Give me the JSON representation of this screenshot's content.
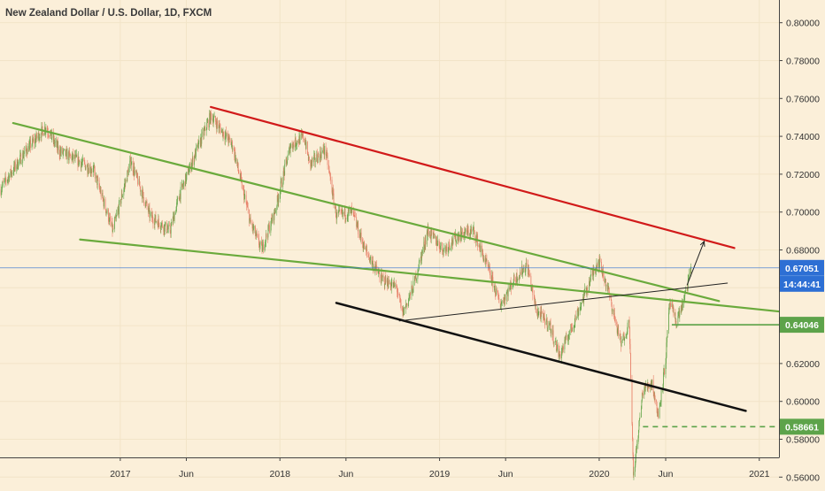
{
  "chart_data": {
    "type": "candlestick",
    "title": "New Zealand Dollar / U.S. Dollar, 1D, FXCM",
    "ylim": [
      0.555,
      0.812
    ],
    "y_ticks": [
      "0.80000",
      "0.78000",
      "0.76000",
      "0.74000",
      "0.72000",
      "0.70000",
      "0.68000",
      "0.66000",
      "0.64000",
      "0.62000",
      "0.60000",
      "0.58000",
      "0.56000"
    ],
    "y_tick_values": [
      0.8,
      0.78,
      0.76,
      0.74,
      0.72,
      0.7,
      0.68,
      0.66,
      0.64,
      0.62,
      0.6,
      0.58,
      0.56
    ],
    "x_range": [
      "2016-04-01",
      "2021-02-15"
    ],
    "x_ticks": [
      {
        "label": "2017",
        "date": "2017-01-01"
      },
      {
        "label": "Jun",
        "date": "2017-06-01"
      },
      {
        "label": "2018",
        "date": "2018-01-01"
      },
      {
        "label": "Jun",
        "date": "2018-06-01"
      },
      {
        "label": "2019",
        "date": "2019-01-01"
      },
      {
        "label": "Jun",
        "date": "2019-06-01"
      },
      {
        "label": "2020",
        "date": "2020-01-01"
      },
      {
        "label": "Jun",
        "date": "2020-06-01"
      },
      {
        "label": "2021",
        "date": "2021-01-01"
      }
    ],
    "price_path": [
      [
        "2016-04-01",
        0.712
      ],
      [
        "2016-06-01",
        0.733
      ],
      [
        "2016-07-15",
        0.745
      ],
      [
        "2016-08-15",
        0.732
      ],
      [
        "2016-09-20",
        0.728
      ],
      [
        "2016-11-01",
        0.722
      ],
      [
        "2016-12-15",
        0.69
      ],
      [
        "2017-01-25",
        0.727
      ],
      [
        "2017-03-10",
        0.698
      ],
      [
        "2017-04-25",
        0.69
      ],
      [
        "2017-05-15",
        0.708
      ],
      [
        "2017-06-20",
        0.73
      ],
      [
        "2017-07-27",
        0.751
      ],
      [
        "2017-09-15",
        0.735
      ],
      [
        "2017-10-25",
        0.695
      ],
      [
        "2017-11-20",
        0.68
      ],
      [
        "2017-12-20",
        0.7
      ],
      [
        "2018-01-25",
        0.735
      ],
      [
        "2018-02-25",
        0.74
      ],
      [
        "2018-03-10",
        0.725
      ],
      [
        "2018-04-15",
        0.733
      ],
      [
        "2018-05-10",
        0.698
      ],
      [
        "2018-06-15",
        0.7
      ],
      [
        "2018-07-15",
        0.68
      ],
      [
        "2018-08-20",
        0.665
      ],
      [
        "2018-09-25",
        0.66
      ],
      [
        "2018-10-08",
        0.646
      ],
      [
        "2018-11-01",
        0.66
      ],
      [
        "2018-12-05",
        0.69
      ],
      [
        "2019-01-10",
        0.68
      ],
      [
        "2019-02-15",
        0.688
      ],
      [
        "2019-03-20",
        0.69
      ],
      [
        "2019-04-25",
        0.668
      ],
      [
        "2019-05-20",
        0.651
      ],
      [
        "2019-06-20",
        0.664
      ],
      [
        "2019-07-20",
        0.672
      ],
      [
        "2019-08-10",
        0.648
      ],
      [
        "2019-09-10",
        0.64
      ],
      [
        "2019-10-02",
        0.624
      ],
      [
        "2019-11-01",
        0.64
      ],
      [
        "2019-12-30",
        0.675
      ],
      [
        "2020-01-20",
        0.66
      ],
      [
        "2020-02-20",
        0.63
      ],
      [
        "2020-03-10",
        0.642
      ],
      [
        "2020-03-19",
        0.56
      ],
      [
        "2020-04-10",
        0.606
      ],
      [
        "2020-05-01",
        0.61
      ],
      [
        "2020-05-15",
        0.592
      ],
      [
        "2020-06-01",
        0.622
      ],
      [
        "2020-06-10",
        0.652
      ],
      [
        "2020-06-25",
        0.642
      ],
      [
        "2020-07-15",
        0.655
      ],
      [
        "2020-07-29",
        0.671
      ]
    ],
    "annotations": {
      "trendlines": [
        {
          "name": "red-resistance-line",
          "color": "#d11a1a",
          "width": 2.2,
          "points": [
            [
              "2017-07-27",
              0.7555
            ],
            [
              "2020-11-05",
              0.681
            ]
          ]
        },
        {
          "name": "green-upper-channel-line",
          "color": "#6aaa3c",
          "width": 2.2,
          "points": [
            [
              "2016-05-01",
              0.747
            ],
            [
              "2020-10-01",
              0.653
            ]
          ]
        },
        {
          "name": "green-lower-channel-line",
          "color": "#6aaa3c",
          "width": 2.2,
          "points": [
            [
              "2016-10-01",
              0.6855
            ],
            [
              "2021-02-15",
              0.6475
            ]
          ]
        },
        {
          "name": "black-support-line",
          "color": "#111111",
          "width": 2.5,
          "points": [
            [
              "2018-05-10",
              0.652
            ],
            [
              "2020-12-01",
              0.595
            ]
          ]
        },
        {
          "name": "thin-rising-line",
          "color": "#222222",
          "width": 1,
          "points": [
            [
              "2018-10-01",
              0.6425
            ],
            [
              "2020-10-20",
              0.6625
            ]
          ]
        },
        {
          "name": "projection-arrow",
          "color": "#222222",
          "width": 1,
          "points": [
            [
              "2020-07-20",
              0.6615
            ],
            [
              "2020-08-28",
              0.6845
            ]
          ]
        }
      ],
      "levels": [
        {
          "name": "level-064046",
          "value": 0.64046,
          "label": "0.64046",
          "start": "2020-06-15",
          "color": "#5da34a",
          "style": "solid"
        },
        {
          "name": "level-058661",
          "value": 0.58661,
          "label": "0.58661",
          "start": "2020-04-10",
          "color": "#5da34a",
          "style": "dashed"
        }
      ],
      "current_price": {
        "value": 0.67051,
        "label": "0.67051",
        "countdown": "14:44:41",
        "color": "#2d6fd4"
      }
    },
    "colors": {
      "background": "#fbefd9",
      "up": "#6aa84f",
      "down": "#e8826b",
      "grid": "#f2e4c8",
      "axis_text": "#333333"
    }
  }
}
